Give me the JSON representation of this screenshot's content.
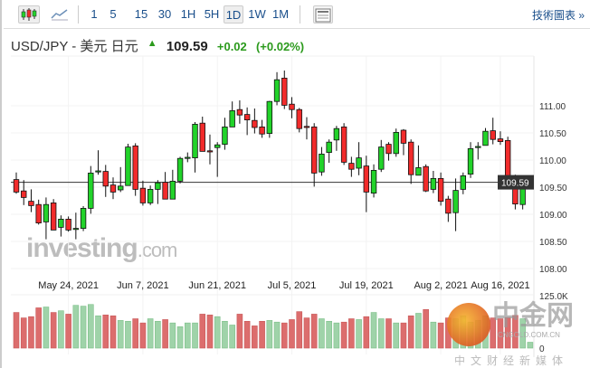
{
  "toolbar": {
    "chart_types": [
      "candlestick-icon",
      "line-chart-icon"
    ],
    "intervals": [
      "1",
      "5",
      "15",
      "30",
      "1H",
      "5H",
      "1D",
      "1W",
      "1M"
    ],
    "selected_interval": "1D",
    "tech_chart_link": "技術圖表 »"
  },
  "header": {
    "symbol": "USD/JPY - 美元 日元",
    "arrow": "▲",
    "price": "109.59",
    "change": "+0.02",
    "change_pct": "(+0.02%)"
  },
  "watermarks": {
    "investing": "investing",
    "investing_suffix": ".com",
    "cngold": "中金网",
    "cngold_url": "CNGOLD.COM.CN",
    "cngold_sub": "中文财经新媒体"
  },
  "colors": {
    "up": "#22d32a",
    "down": "#f22b2b",
    "vol_up": "#9fd3a9",
    "vol_down": "#dc6d6d",
    "accent": "#1a4f8b"
  },
  "chart_data": {
    "type": "candlestick",
    "price_ticks": [
      "111.00",
      "110.50",
      "110.00",
      "109.50",
      "109.00",
      "108.50",
      "108.00"
    ],
    "price_tick_values": [
      111.0,
      110.5,
      110.0,
      109.5,
      109.0,
      108.5,
      108.0
    ],
    "last_price_label": "109.59",
    "last_price": 109.59,
    "ylim": [
      107.95,
      111.8
    ],
    "date_labels": [
      "May 24, 2021",
      "Jun 7, 2021",
      "Jun 21, 2021",
      "Jul 5, 2021",
      "Jul 19, 2021",
      "Aug 2, 2021",
      "Aug 16, 2021"
    ],
    "date_label_index": [
      7,
      17,
      27,
      37,
      47,
      57,
      65
    ],
    "volume_ticks": [
      "125.0K",
      "0"
    ],
    "volume_max_k": 125,
    "ohlc": [
      [
        109.64,
        109.77,
        109.38,
        109.41
      ],
      [
        109.43,
        109.63,
        109.17,
        109.31
      ],
      [
        109.24,
        109.46,
        109.04,
        109.16
      ],
      [
        109.18,
        109.27,
        108.81,
        108.84
      ],
      [
        108.86,
        109.31,
        108.54,
        109.18
      ],
      [
        109.21,
        109.28,
        108.71,
        108.71
      ],
      [
        108.76,
        108.98,
        108.59,
        108.91
      ],
      [
        108.91,
        108.96,
        108.68,
        108.71
      ],
      [
        108.73,
        109.03,
        108.54,
        108.74
      ],
      [
        108.74,
        109.15,
        108.69,
        109.11
      ],
      [
        109.11,
        109.89,
        109.01,
        109.76
      ],
      [
        109.78,
        110.18,
        109.73,
        109.8
      ],
      [
        109.79,
        109.91,
        109.32,
        109.52
      ],
      [
        109.54,
        109.68,
        109.28,
        109.41
      ],
      [
        109.45,
        109.87,
        109.41,
        109.52
      ],
      [
        109.53,
        110.3,
        109.53,
        110.24
      ],
      [
        110.26,
        110.31,
        109.34,
        109.46
      ],
      [
        109.48,
        109.62,
        109.16,
        109.21
      ],
      [
        109.21,
        109.53,
        109.17,
        109.46
      ],
      [
        109.46,
        109.63,
        109.19,
        109.58
      ],
      [
        109.59,
        109.78,
        109.28,
        109.28
      ],
      [
        109.28,
        109.82,
        109.28,
        109.61
      ],
      [
        109.61,
        110.06,
        109.57,
        110.03
      ],
      [
        110.04,
        110.14,
        109.96,
        110.05
      ],
      [
        110.04,
        110.7,
        109.77,
        110.66
      ],
      [
        110.68,
        110.8,
        110.16,
        110.16
      ],
      [
        110.17,
        110.47,
        109.92,
        110.16
      ],
      [
        110.23,
        110.33,
        109.69,
        110.28
      ],
      [
        110.29,
        110.78,
        110.19,
        110.61
      ],
      [
        110.61,
        111.08,
        110.61,
        110.91
      ],
      [
        110.93,
        111.1,
        110.67,
        110.83
      ],
      [
        110.84,
        110.97,
        110.46,
        110.74
      ],
      [
        110.73,
        110.95,
        110.49,
        110.6
      ],
      [
        110.61,
        110.74,
        110.41,
        110.48
      ],
      [
        110.49,
        111.09,
        110.41,
        111.08
      ],
      [
        111.08,
        111.62,
        111.01,
        111.48
      ],
      [
        111.51,
        111.65,
        110.94,
        111.01
      ],
      [
        111.03,
        111.16,
        110.77,
        110.93
      ],
      [
        110.93,
        110.96,
        110.51,
        110.58
      ],
      [
        110.62,
        110.79,
        110.38,
        110.61
      ],
      [
        110.61,
        110.68,
        109.51,
        109.76
      ],
      [
        109.78,
        110.24,
        109.71,
        110.11
      ],
      [
        110.14,
        110.38,
        109.95,
        110.33
      ],
      [
        110.37,
        110.63,
        110.17,
        110.58
      ],
      [
        110.61,
        110.68,
        109.91,
        109.96
      ],
      [
        109.94,
        110.06,
        109.69,
        109.83
      ],
      [
        109.85,
        110.33,
        109.72,
        110.04
      ],
      [
        109.89,
        110.08,
        109.04,
        109.41
      ],
      [
        109.39,
        109.92,
        109.31,
        109.81
      ],
      [
        109.83,
        110.37,
        109.78,
        110.24
      ],
      [
        110.29,
        110.33,
        109.99,
        110.12
      ],
      [
        110.12,
        110.58,
        110.06,
        110.51
      ],
      [
        110.55,
        110.57,
        110.09,
        110.31
      ],
      [
        110.33,
        110.38,
        109.56,
        109.73
      ],
      [
        109.72,
        110.27,
        109.72,
        109.86
      ],
      [
        109.88,
        109.92,
        109.41,
        109.43
      ],
      [
        109.46,
        109.8,
        109.39,
        109.66
      ],
      [
        109.66,
        109.77,
        109.16,
        109.24
      ],
      [
        109.28,
        109.34,
        108.86,
        109.02
      ],
      [
        109.03,
        109.66,
        108.69,
        109.44
      ],
      [
        109.46,
        109.77,
        109.37,
        109.71
      ],
      [
        109.74,
        110.33,
        109.67,
        110.21
      ],
      [
        110.24,
        110.33,
        110.01,
        110.25
      ],
      [
        110.27,
        110.59,
        110.27,
        110.53
      ],
      [
        110.54,
        110.78,
        110.29,
        110.38
      ],
      [
        110.39,
        110.53,
        110.28,
        110.34
      ],
      [
        110.36,
        110.43,
        109.53,
        109.54
      ],
      [
        109.68,
        109.73,
        109.09,
        109.19
      ],
      [
        109.18,
        109.63,
        109.09,
        109.54
      ],
      [
        109.52,
        109.62,
        109.46,
        109.59
      ]
    ],
    "volume_k": [
      85,
      72,
      75,
      96,
      98,
      85,
      89,
      81,
      102,
      100,
      104,
      77,
      79,
      77,
      66,
      64,
      70,
      60,
      70,
      64,
      68,
      60,
      51,
      60,
      60,
      81,
      79,
      75,
      64,
      55,
      81,
      64,
      53,
      64,
      66,
      62,
      60,
      68,
      87,
      72,
      81,
      70,
      64,
      60,
      62,
      70,
      68,
      75,
      85,
      70,
      70,
      60,
      60,
      77,
      83,
      92,
      62,
      60,
      72,
      70,
      77,
      62,
      66,
      77,
      72,
      70,
      73,
      78,
      70,
      14
    ]
  }
}
